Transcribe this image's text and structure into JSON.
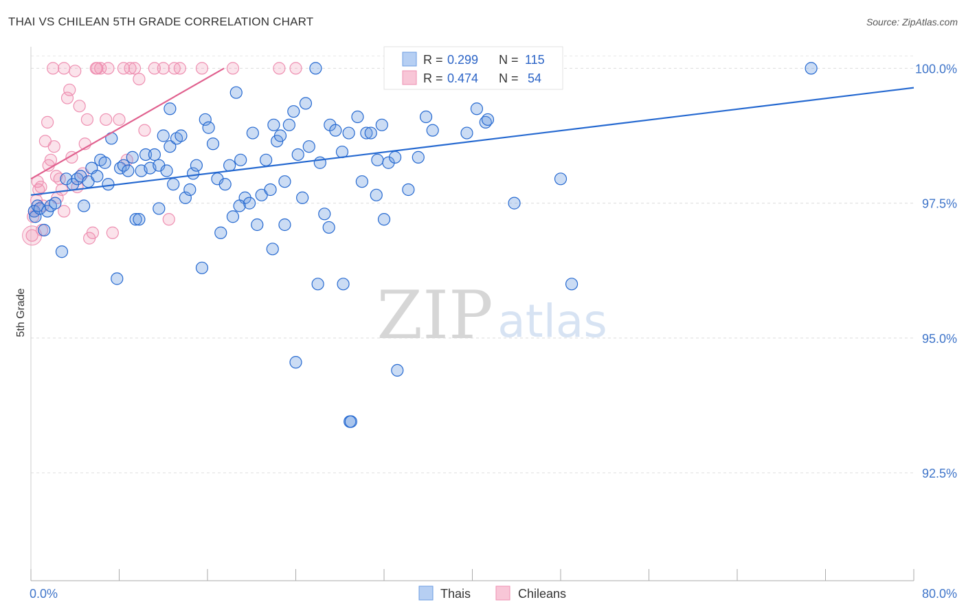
{
  "header": {
    "title": "THAI VS CHILEAN 5TH GRADE CORRELATION CHART",
    "source": "Source: ZipAtlas.com"
  },
  "watermark": {
    "zip": "ZIP",
    "atlas": "atlas"
  },
  "colors": {
    "thais": "#6a9be0",
    "thais_line": "#2468d0",
    "chileans": "#ee8fb1",
    "chileans_line": "#e0608e",
    "axis_text": "#3e74c9",
    "stat_value": "#2a63c6"
  },
  "chart_data": {
    "type": "scatter",
    "title": "THAI VS CHILEAN 5TH GRADE CORRELATION CHART",
    "xlabel": "",
    "ylabel": "5th Grade",
    "xlim": [
      0,
      80
    ],
    "ylim": [
      90.5,
      100.4
    ],
    "x_tick_labels": [
      "0.0%",
      "80.0%"
    ],
    "y_ticks": [
      92.5,
      95.0,
      97.5,
      100.0
    ],
    "y_tick_labels": [
      "92.5%",
      "95.0%",
      "97.5%",
      "100.0%"
    ],
    "grid": true,
    "legend_position": "bottom-center",
    "series": [
      {
        "name": "Thais",
        "color": "#6a9be0",
        "R": "0.299",
        "N": "115",
        "trend": {
          "x": [
            0,
            80
          ],
          "y": [
            97.65,
            99.64
          ]
        },
        "points": [
          [
            0.3,
            97.35
          ],
          [
            0.4,
            97.25
          ],
          [
            0.6,
            97.45
          ],
          [
            0.8,
            97.4
          ],
          [
            1.2,
            97.0
          ],
          [
            1.5,
            97.35
          ],
          [
            1.8,
            97.45
          ],
          [
            2.2,
            97.5
          ],
          [
            2.8,
            96.6
          ],
          [
            3.2,
            97.95
          ],
          [
            3.8,
            97.85
          ],
          [
            4.2,
            97.95
          ],
          [
            4.5,
            98.0
          ],
          [
            4.8,
            97.45
          ],
          [
            5.2,
            97.9
          ],
          [
            5.5,
            98.15
          ],
          [
            6.0,
            98.0
          ],
          [
            6.3,
            98.3
          ],
          [
            6.7,
            98.25
          ],
          [
            7.0,
            97.85
          ],
          [
            7.3,
            98.7
          ],
          [
            7.8,
            96.1
          ],
          [
            8.1,
            98.15
          ],
          [
            8.4,
            98.2
          ],
          [
            8.8,
            98.1
          ],
          [
            9.2,
            98.35
          ],
          [
            9.5,
            97.2
          ],
          [
            10.0,
            98.1
          ],
          [
            10.4,
            98.4
          ],
          [
            10.8,
            98.15
          ],
          [
            11.2,
            98.4
          ],
          [
            11.6,
            98.2
          ],
          [
            12.0,
            98.75
          ],
          [
            12.3,
            98.1
          ],
          [
            12.6,
            98.55
          ],
          [
            12.9,
            97.85
          ],
          [
            13.2,
            98.7
          ],
          [
            13.6,
            98.75
          ],
          [
            14.0,
            97.6
          ],
          [
            14.4,
            97.75
          ],
          [
            14.7,
            98.05
          ],
          [
            15.0,
            98.2
          ],
          [
            15.5,
            96.3
          ],
          [
            15.8,
            99.05
          ],
          [
            16.1,
            98.9
          ],
          [
            16.5,
            98.6
          ],
          [
            16.9,
            97.95
          ],
          [
            17.2,
            96.95
          ],
          [
            17.6,
            97.85
          ],
          [
            18.0,
            98.2
          ],
          [
            18.3,
            97.25
          ],
          [
            18.6,
            99.55
          ],
          [
            19.0,
            98.3
          ],
          [
            19.4,
            97.6
          ],
          [
            19.8,
            97.5
          ],
          [
            20.1,
            98.8
          ],
          [
            20.5,
            97.1
          ],
          [
            20.9,
            97.65
          ],
          [
            21.3,
            98.3
          ],
          [
            21.7,
            97.75
          ],
          [
            22.0,
            98.95
          ],
          [
            22.3,
            98.65
          ],
          [
            22.6,
            98.75
          ],
          [
            23.0,
            97.9
          ],
          [
            23.4,
            98.95
          ],
          [
            23.8,
            99.2
          ],
          [
            24.2,
            98.4
          ],
          [
            24.6,
            97.6
          ],
          [
            24.9,
            99.35
          ],
          [
            25.2,
            98.55
          ],
          [
            25.8,
            100.0
          ],
          [
            26.2,
            98.25
          ],
          [
            26.6,
            97.3
          ],
          [
            27.1,
            98.95
          ],
          [
            27.6,
            98.85
          ],
          [
            28.2,
            98.45
          ],
          [
            28.8,
            98.8
          ],
          [
            28.9,
            93.45
          ],
          [
            29.6,
            99.1
          ],
          [
            30.0,
            97.9
          ],
          [
            30.4,
            98.8
          ],
          [
            30.8,
            98.8
          ],
          [
            31.4,
            98.3
          ],
          [
            31.8,
            98.95
          ],
          [
            32.4,
            98.25
          ],
          [
            33.0,
            98.35
          ],
          [
            33.2,
            94.4
          ],
          [
            34.2,
            97.75
          ],
          [
            35.1,
            98.35
          ],
          [
            35.8,
            99.1
          ],
          [
            36.4,
            98.85
          ],
          [
            37.0,
            100.0
          ],
          [
            38.1,
            100.0
          ],
          [
            39.5,
            98.8
          ],
          [
            40.4,
            99.25
          ],
          [
            41.2,
            99.0
          ],
          [
            41.4,
            99.05
          ],
          [
            43.8,
            97.5
          ],
          [
            45.5,
            100.0
          ],
          [
            48.0,
            97.95
          ],
          [
            49.0,
            96.0
          ],
          [
            70.7,
            100.0
          ],
          [
            24.0,
            94.55
          ],
          [
            29.0,
            93.45
          ],
          [
            23.0,
            97.1
          ],
          [
            12.6,
            99.25
          ],
          [
            32.0,
            97.2
          ],
          [
            18.9,
            97.45
          ],
          [
            28.3,
            96.0
          ],
          [
            21.9,
            96.65
          ],
          [
            26.0,
            96.0
          ],
          [
            9.8,
            97.2
          ],
          [
            11.6,
            97.4
          ],
          [
            27.0,
            97.05
          ],
          [
            31.3,
            97.65
          ]
        ]
      },
      {
        "name": "Chileans",
        "color": "#ee8fb1",
        "R": "0.474",
        "N": "54",
        "trend": {
          "x": [
            0,
            17.5
          ],
          "y": [
            97.95,
            100.0
          ]
        },
        "points": [
          [
            0.1,
            96.9
          ],
          [
            0.2,
            97.25
          ],
          [
            0.3,
            97.35
          ],
          [
            0.5,
            97.55
          ],
          [
            0.7,
            97.75
          ],
          [
            0.9,
            97.8
          ],
          [
            1.1,
            97.45
          ],
          [
            1.3,
            98.65
          ],
          [
            1.5,
            99.0
          ],
          [
            1.8,
            98.3
          ],
          [
            2.1,
            98.55
          ],
          [
            2.3,
            98.0
          ],
          [
            2.6,
            97.95
          ],
          [
            2.8,
            97.75
          ],
          [
            3.0,
            97.35
          ],
          [
            3.3,
            99.45
          ],
          [
            3.5,
            99.6
          ],
          [
            3.7,
            98.35
          ],
          [
            4.0,
            99.95
          ],
          [
            4.2,
            97.8
          ],
          [
            4.4,
            99.3
          ],
          [
            4.7,
            98.05
          ],
          [
            4.9,
            98.6
          ],
          [
            5.1,
            99.05
          ],
          [
            5.3,
            96.85
          ],
          [
            5.6,
            96.95
          ],
          [
            5.9,
            100.0
          ],
          [
            6.3,
            100.0
          ],
          [
            6.8,
            99.05
          ],
          [
            7.0,
            100.0
          ],
          [
            7.4,
            96.95
          ],
          [
            8.0,
            99.05
          ],
          [
            8.4,
            100.0
          ],
          [
            8.7,
            98.3
          ],
          [
            9.0,
            100.0
          ],
          [
            9.4,
            100.0
          ],
          [
            9.8,
            99.8
          ],
          [
            10.3,
            98.85
          ],
          [
            11.2,
            100.0
          ],
          [
            12.0,
            100.0
          ],
          [
            12.5,
            97.2
          ],
          [
            13.0,
            100.0
          ],
          [
            13.5,
            100.0
          ],
          [
            15.5,
            100.0
          ],
          [
            18.3,
            100.0
          ],
          [
            22.5,
            100.0
          ],
          [
            24.0,
            100.0
          ],
          [
            2.0,
            100.0
          ],
          [
            3.0,
            100.0
          ],
          [
            1.0,
            97.0
          ],
          [
            0.6,
            97.9
          ],
          [
            1.6,
            98.2
          ],
          [
            2.4,
            97.6
          ],
          [
            6.0,
            100.0
          ]
        ]
      }
    ]
  }
}
